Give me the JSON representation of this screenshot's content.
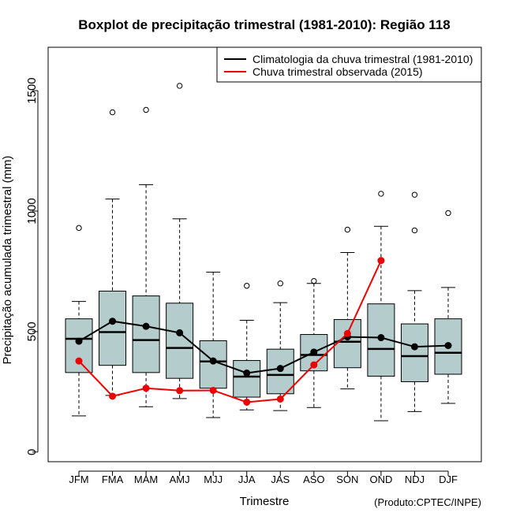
{
  "chart_data": {
    "type": "boxplot",
    "title": "Boxplot de precipitação trimestral (1981-2010): Região 118",
    "xlabel": "Trimestre",
    "ylabel": "Precipitação acumulada trimestral (mm)",
    "credit": "(Produto:CPTEC/INPE)",
    "ylim": [
      -40,
      1680
    ],
    "yticks": [
      0,
      500,
      1000,
      1500
    ],
    "ytick_labels": [
      "0",
      "500",
      "1000",
      "1500"
    ],
    "categories": [
      "JFM",
      "FMA",
      "MAM",
      "AMJ",
      "MJJ",
      "JJA",
      "JAS",
      "ASO",
      "SON",
      "OND",
      "NDJ",
      "DJF"
    ],
    "boxes": [
      {
        "lower_whisker": 150,
        "q1": 330,
        "median": 470,
        "q3": 553,
        "upper_whisker": 625,
        "outliers": [
          930
        ]
      },
      {
        "lower_whisker": 235,
        "q1": 360,
        "median": 498,
        "q3": 668,
        "upper_whisker": 1050,
        "outliers": [
          1410
        ]
      },
      {
        "lower_whisker": 188,
        "q1": 330,
        "median": 465,
        "q3": 648,
        "upper_whisker": 1110,
        "outliers": [
          1420
        ]
      },
      {
        "lower_whisker": 222,
        "q1": 306,
        "median": 432,
        "q3": 618,
        "upper_whisker": 968,
        "outliers": [
          1520
        ]
      },
      {
        "lower_whisker": 143,
        "q1": 265,
        "median": 376,
        "q3": 462,
        "upper_whisker": 747,
        "outliers": []
      },
      {
        "lower_whisker": 175,
        "q1": 228,
        "median": 313,
        "q3": 380,
        "upper_whisker": 547,
        "outliers": [
          690
        ]
      },
      {
        "lower_whisker": 172,
        "q1": 242,
        "median": 320,
        "q3": 427,
        "upper_whisker": 620,
        "outliers": [
          700
        ]
      },
      {
        "lower_whisker": 185,
        "q1": 337,
        "median": 403,
        "q3": 488,
        "upper_whisker": 700,
        "outliers": [
          710
        ]
      },
      {
        "lower_whisker": 262,
        "q1": 350,
        "median": 458,
        "q3": 550,
        "upper_whisker": 828,
        "outliers": [
          923
        ]
      },
      {
        "lower_whisker": 130,
        "q1": 315,
        "median": 428,
        "q3": 615,
        "upper_whisker": 937,
        "outliers": [
          1072
        ]
      },
      {
        "lower_whisker": 168,
        "q1": 292,
        "median": 398,
        "q3": 532,
        "upper_whisker": 670,
        "outliers": [
          920,
          1068
        ]
      },
      {
        "lower_whisker": 202,
        "q1": 323,
        "median": 412,
        "q3": 553,
        "upper_whisker": 683,
        "outliers": [
          992
        ]
      }
    ],
    "series": [
      {
        "name": "Climatologia da chuva trimestral (1981-2010)",
        "color": "#000000",
        "values": [
          460,
          543,
          522,
          495,
          378,
          328,
          347,
          415,
          478,
          475,
          437,
          442
        ]
      },
      {
        "name": "Chuva trimestral observada (2015)",
        "color": "#ee0000",
        "values": [
          378,
          232,
          265,
          255,
          256,
          207,
          220,
          362,
          492,
          795,
          null,
          null
        ]
      }
    ],
    "box_fill": "#b4cccc",
    "legend_position": "top-right"
  }
}
